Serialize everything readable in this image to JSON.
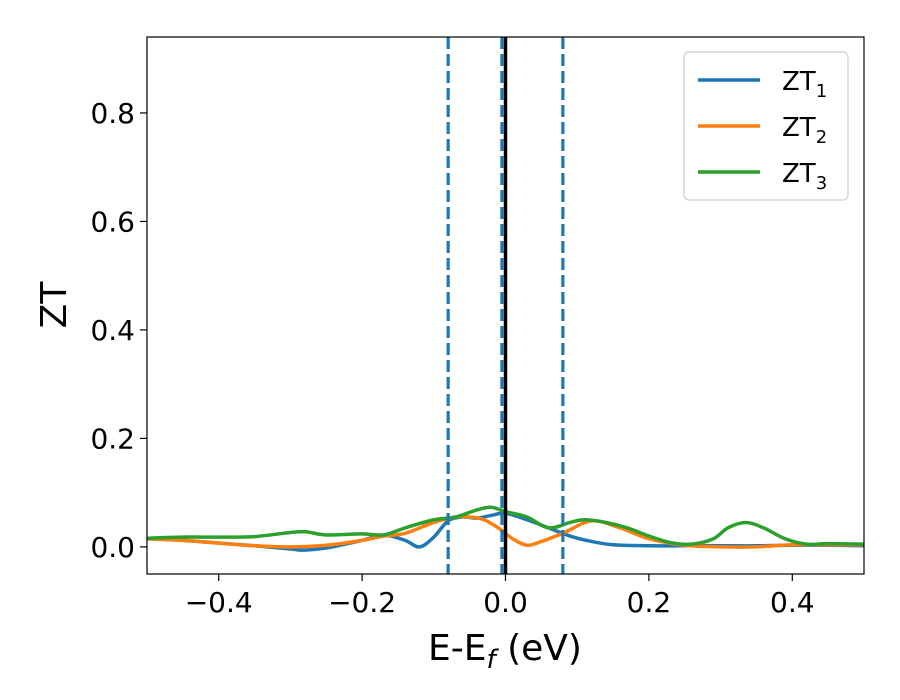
{
  "chart_data": {
    "type": "line",
    "xlabel_parts": [
      "E-E",
      "f",
      " (eV)"
    ],
    "ylabel": "ZT",
    "xlim": [
      -0.5,
      0.5
    ],
    "ylim": [
      -0.05,
      0.94
    ],
    "xticks": [
      -0.4,
      -0.2,
      0.0,
      0.2,
      0.4
    ],
    "xtick_labels": [
      "−0.4",
      "−0.2",
      "0.0",
      "0.2",
      "0.4"
    ],
    "yticks": [
      0.0,
      0.2,
      0.4,
      0.6,
      0.8
    ],
    "ytick_labels": [
      "0.0",
      "0.2",
      "0.4",
      "0.6",
      "0.8"
    ],
    "legend_position": "top-right",
    "vlines": [
      {
        "x": -0.08,
        "style": "dashed",
        "color": "#1f77b4"
      },
      {
        "x": -0.005,
        "style": "dashed",
        "color": "#1f77b4"
      },
      {
        "x": 0.0,
        "style": "solid",
        "color": "#000000"
      },
      {
        "x": 0.08,
        "style": "dashed",
        "color": "#1f77b4"
      }
    ],
    "series": [
      {
        "name_base": "ZT",
        "name_sub": "1",
        "color": "#1f77b4",
        "x": [
          -0.5,
          -0.45,
          -0.4,
          -0.35,
          -0.3,
          -0.28,
          -0.25,
          -0.2,
          -0.17,
          -0.14,
          -0.12,
          -0.1,
          -0.08,
          -0.06,
          -0.04,
          -0.02,
          0.0,
          0.03,
          0.06,
          0.09,
          0.12,
          0.15,
          0.2,
          0.25,
          0.3,
          0.35,
          0.4,
          0.45,
          0.5
        ],
        "y": [
          0.015,
          0.012,
          0.007,
          0.002,
          -0.004,
          -0.006,
          -0.002,
          0.012,
          0.022,
          0.012,
          0.0,
          0.018,
          0.048,
          0.055,
          0.053,
          0.058,
          0.062,
          0.05,
          0.035,
          0.02,
          0.01,
          0.004,
          0.002,
          0.002,
          0.002,
          0.002,
          0.003,
          0.003,
          0.002
        ]
      },
      {
        "name_base": "ZT",
        "name_sub": "2",
        "color": "#ff7f0e",
        "x": [
          -0.5,
          -0.45,
          -0.4,
          -0.35,
          -0.3,
          -0.25,
          -0.2,
          -0.17,
          -0.14,
          -0.1,
          -0.07,
          -0.05,
          -0.03,
          -0.01,
          0.01,
          0.03,
          0.05,
          0.08,
          0.12,
          0.16,
          0.2,
          0.25,
          0.3,
          0.35,
          0.4,
          0.45,
          0.5
        ],
        "y": [
          0.015,
          0.012,
          0.007,
          0.002,
          0.0,
          0.003,
          0.012,
          0.02,
          0.025,
          0.045,
          0.055,
          0.055,
          0.05,
          0.035,
          0.015,
          0.003,
          0.01,
          0.025,
          0.048,
          0.035,
          0.015,
          0.003,
          0.0,
          0.0,
          0.004,
          0.004,
          0.004
        ]
      },
      {
        "name_base": "ZT",
        "name_sub": "3",
        "color": "#2ca02c",
        "x": [
          -0.5,
          -0.45,
          -0.4,
          -0.35,
          -0.31,
          -0.28,
          -0.25,
          -0.2,
          -0.17,
          -0.14,
          -0.1,
          -0.07,
          -0.04,
          -0.02,
          0.0,
          0.03,
          0.06,
          0.09,
          0.11,
          0.14,
          0.17,
          0.2,
          0.23,
          0.26,
          0.29,
          0.31,
          0.335,
          0.36,
          0.39,
          0.42,
          0.45,
          0.5
        ],
        "y": [
          0.016,
          0.018,
          0.018,
          0.019,
          0.025,
          0.028,
          0.022,
          0.024,
          0.022,
          0.035,
          0.05,
          0.055,
          0.068,
          0.073,
          0.065,
          0.055,
          0.035,
          0.045,
          0.05,
          0.045,
          0.035,
          0.02,
          0.008,
          0.005,
          0.015,
          0.035,
          0.045,
          0.035,
          0.015,
          0.005,
          0.006,
          0.005
        ]
      }
    ]
  }
}
